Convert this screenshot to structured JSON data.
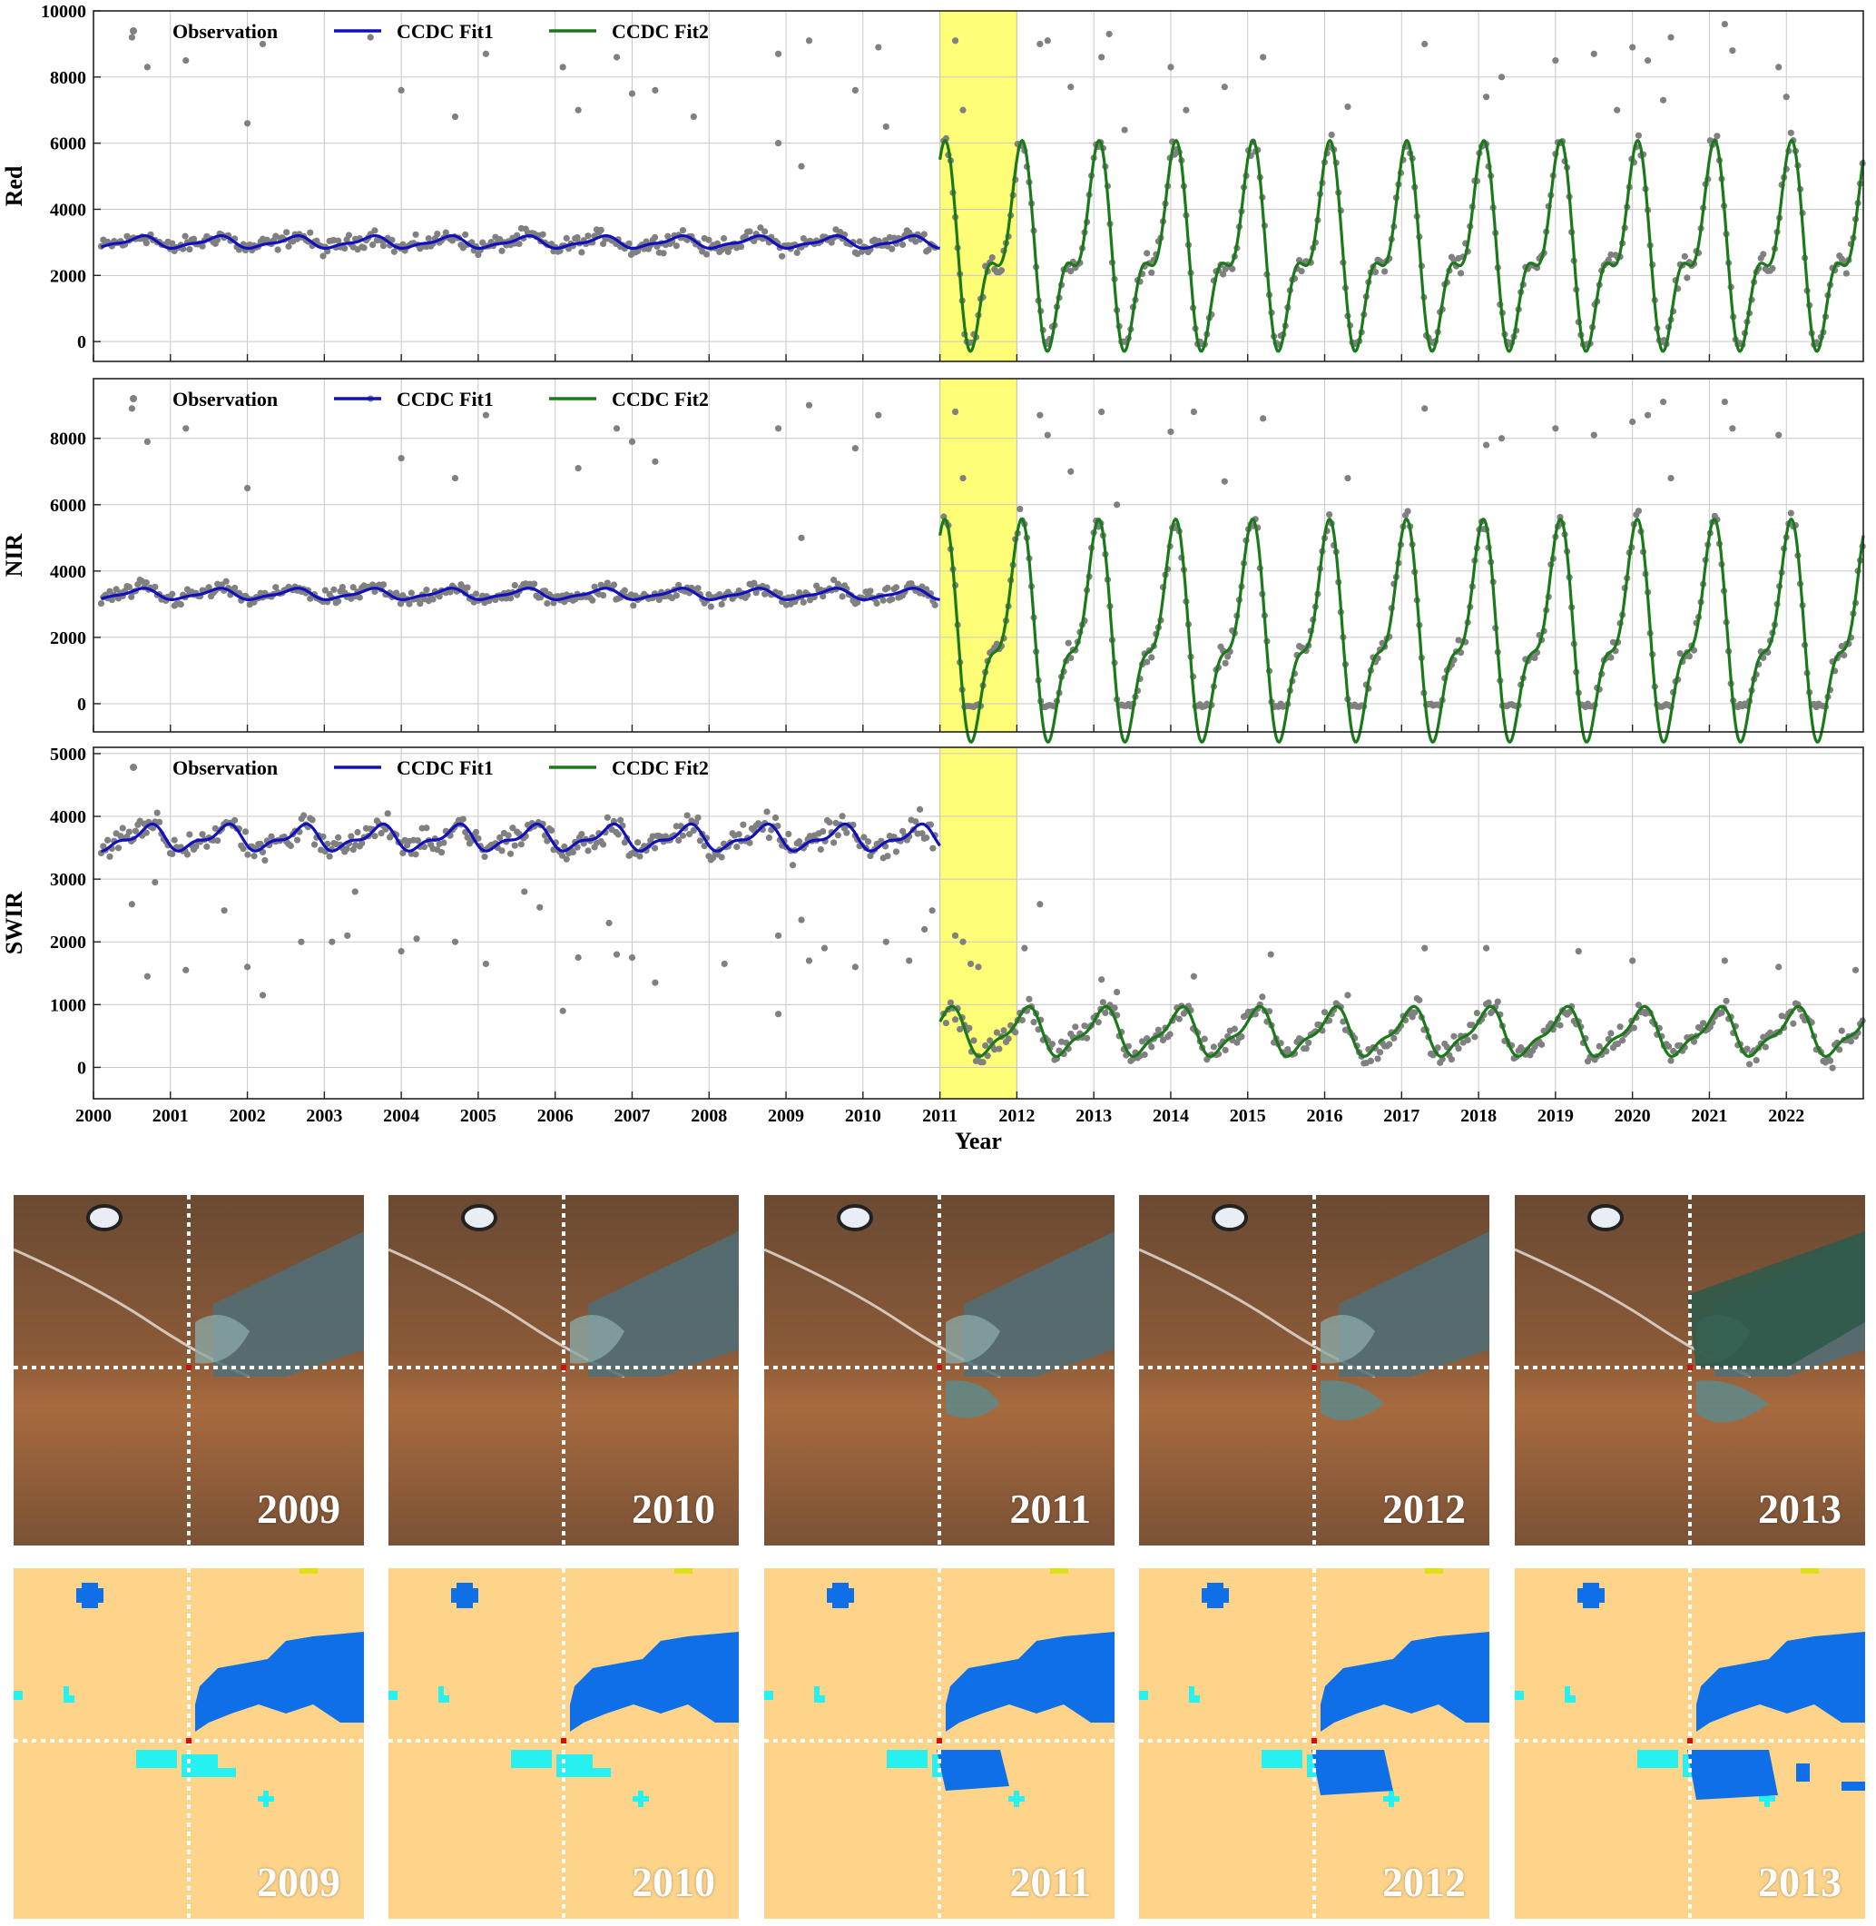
{
  "chart_data": {
    "type": "scatter",
    "xlabel": "Year",
    "xlim": [
      2000,
      2023
    ],
    "xticks": [
      "2000",
      "2001",
      "2002",
      "2003",
      "2004",
      "2005",
      "2006",
      "2007",
      "2008",
      "2009",
      "2010",
      "2011",
      "2012",
      "2013",
      "2014",
      "2015",
      "2016",
      "2017",
      "2018",
      "2019",
      "2020",
      "2021",
      "2022"
    ],
    "highlight_span": [
      2011,
      2012
    ],
    "highlight_color": "#ffff77",
    "legend": [
      "Observation",
      "CCDC Fit1",
      "CCDC Fit2"
    ],
    "legend_position": "top-left",
    "grid": true,
    "colors": {
      "observation": "#808080",
      "fit1": "#1010c0",
      "fit2": "#1a7a1a"
    },
    "panels": [
      {
        "ylabel": "Red",
        "ylim": [
          -600,
          10000
        ],
        "yticks": [
          0,
          2000,
          4000,
          6000,
          8000,
          10000
        ],
        "fit1": {
          "x_range": [
            2000.1,
            2011.0
          ],
          "mean": 3000,
          "amp1": 160,
          "phase1": 0.6,
          "amp2": 60,
          "phase2": 0.2
        },
        "fit2": {
          "x_range": [
            2011.0,
            2023.0
          ],
          "mean": 2700,
          "amp1": 2400,
          "phase1": 0.0,
          "amp2": 1300,
          "phase2": 0.1
        },
        "obs_seg1": {
          "base": 3000,
          "spread": 350,
          "outliers": [
            [
              2000.5,
              9200
            ],
            [
              2000.7,
              8300
            ],
            [
              2001.2,
              8500
            ],
            [
              2002.0,
              6600
            ],
            [
              2002.2,
              9000
            ],
            [
              2003.6,
              9200
            ],
            [
              2004.0,
              7600
            ],
            [
              2004.7,
              6800
            ],
            [
              2005.1,
              8700
            ],
            [
              2006.1,
              8300
            ],
            [
              2006.3,
              7000
            ],
            [
              2006.8,
              8600
            ],
            [
              2007.0,
              7500
            ],
            [
              2007.3,
              7600
            ],
            [
              2007.8,
              6800
            ],
            [
              2008.9,
              8700
            ],
            [
              2008.9,
              6000
            ],
            [
              2009.3,
              9100
            ],
            [
              2009.2,
              5300
            ],
            [
              2009.9,
              7600
            ],
            [
              2010.2,
              8900
            ],
            [
              2010.3,
              6500
            ]
          ]
        },
        "obs_seg2": {
          "noise": 500,
          "outliers": [
            [
              2011.2,
              9100
            ],
            [
              2011.3,
              7000
            ],
            [
              2012.3,
              9000
            ],
            [
              2012.4,
              9100
            ],
            [
              2012.7,
              7700
            ],
            [
              2013.1,
              8600
            ],
            [
              2013.2,
              9300
            ],
            [
              2013.4,
              6400
            ],
            [
              2014.0,
              8300
            ],
            [
              2014.2,
              7000
            ],
            [
              2014.7,
              7700
            ],
            [
              2015.2,
              8600
            ],
            [
              2016.3,
              7100
            ],
            [
              2017.3,
              9000
            ],
            [
              2018.1,
              7400
            ],
            [
              2018.3,
              8000
            ],
            [
              2019.0,
              8500
            ],
            [
              2019.5,
              8700
            ],
            [
              2019.8,
              7000
            ],
            [
              2020.0,
              8900
            ],
            [
              2020.2,
              8500
            ],
            [
              2020.4,
              7300
            ],
            [
              2020.5,
              9200
            ],
            [
              2021.2,
              9600
            ],
            [
              2021.3,
              8800
            ],
            [
              2021.9,
              8300
            ],
            [
              2022.0,
              7400
            ]
          ]
        }
      },
      {
        "ylabel": "NIR",
        "ylim": [
          -850,
          9800
        ],
        "yticks": [
          0,
          2000,
          4000,
          6000,
          8000
        ],
        "fit1": {
          "x_range": [
            2000.1,
            2011.0
          ],
          "mean": 3300,
          "amp1": 150,
          "phase1": 0.6,
          "amp2": 50,
          "phase2": 0.2
        },
        "fit2": {
          "x_range": [
            2011.0,
            2023.0
          ],
          "mean": 2000,
          "amp1": 2700,
          "phase1": 0.0,
          "amp2": 1200,
          "phase2": 0.1
        },
        "obs_seg1": {
          "base": 3300,
          "spread": 350,
          "outliers": [
            [
              2000.5,
              8900
            ],
            [
              2000.7,
              7900
            ],
            [
              2001.2,
              8300
            ],
            [
              2002.0,
              6500
            ],
            [
              2003.6,
              9200
            ],
            [
              2004.0,
              7400
            ],
            [
              2004.7,
              6800
            ],
            [
              2005.1,
              8700
            ],
            [
              2006.3,
              7100
            ],
            [
              2006.8,
              8300
            ],
            [
              2007.0,
              7900
            ],
            [
              2007.3,
              7300
            ],
            [
              2009.2,
              5000
            ],
            [
              2008.9,
              8300
            ],
            [
              2009.3,
              9000
            ],
            [
              2009.9,
              7700
            ],
            [
              2010.2,
              8700
            ]
          ]
        },
        "obs_seg2": {
          "noise": 450,
          "outliers": [
            [
              2011.2,
              8800
            ],
            [
              2011.3,
              6800
            ],
            [
              2012.3,
              8700
            ],
            [
              2012.4,
              8100
            ],
            [
              2012.7,
              7000
            ],
            [
              2013.1,
              8800
            ],
            [
              2013.3,
              6000
            ],
            [
              2014.0,
              8200
            ],
            [
              2014.3,
              8800
            ],
            [
              2014.7,
              6700
            ],
            [
              2015.2,
              8600
            ],
            [
              2016.3,
              6800
            ],
            [
              2017.3,
              8900
            ],
            [
              2018.1,
              7800
            ],
            [
              2018.3,
              8000
            ],
            [
              2019.0,
              8300
            ],
            [
              2019.5,
              8100
            ],
            [
              2020.0,
              8500
            ],
            [
              2020.2,
              8700
            ],
            [
              2020.4,
              9100
            ],
            [
              2020.5,
              6800
            ],
            [
              2021.2,
              9100
            ],
            [
              2021.3,
              8300
            ],
            [
              2021.9,
              8100
            ]
          ]
        }
      },
      {
        "ylabel": "SWIR",
        "ylim": [
          -500,
          5100
        ],
        "yticks": [
          0,
          1000,
          2000,
          3000,
          4000,
          5000
        ],
        "fit1": {
          "x_range": [
            2000.1,
            2011.0
          ],
          "mean": 3650,
          "amp1": 170,
          "phase1": 0.7,
          "amp2": 80,
          "phase2": 0.3
        },
        "fit2": {
          "x_range": [
            2011.0,
            2023.0
          ],
          "mean": 550,
          "amp1": 340,
          "phase1": 0.1,
          "amp2": 120,
          "phase2": 0.2
        },
        "obs_seg1": {
          "base": 3700,
          "spread": 300,
          "outliers": [
            [
              2000.5,
              2600
            ],
            [
              2000.7,
              1450
            ],
            [
              2000.8,
              2950
            ],
            [
              2001.2,
              1550
            ],
            [
              2001.7,
              2500
            ],
            [
              2002.2,
              1150
            ],
            [
              2002.0,
              1600
            ],
            [
              2002.7,
              2000
            ],
            [
              2003.1,
              2000
            ],
            [
              2003.3,
              2100
            ],
            [
              2003.4,
              2800
            ],
            [
              2004.0,
              1850
            ],
            [
              2004.2,
              2050
            ],
            [
              2004.7,
              2000
            ],
            [
              2005.1,
              1650
            ],
            [
              2005.6,
              2800
            ],
            [
              2005.8,
              2550
            ],
            [
              2006.1,
              900
            ],
            [
              2006.3,
              1750
            ],
            [
              2006.7,
              2300
            ],
            [
              2006.8,
              1800
            ],
            [
              2007.0,
              1750
            ],
            [
              2007.3,
              1350
            ],
            [
              2008.2,
              1650
            ],
            [
              2008.9,
              850
            ],
            [
              2008.9,
              2100
            ],
            [
              2009.2,
              2350
            ],
            [
              2009.3,
              1700
            ],
            [
              2009.5,
              1900
            ],
            [
              2009.9,
              1600
            ],
            [
              2010.3,
              2000
            ],
            [
              2010.6,
              1700
            ],
            [
              2010.8,
              2200
            ],
            [
              2010.9,
              2500
            ]
          ]
        },
        "obs_seg2": {
          "noise": 280,
          "outliers": [
            [
              2011.2,
              2100
            ],
            [
              2011.3,
              2000
            ],
            [
              2011.4,
              1650
            ],
            [
              2011.5,
              1600
            ],
            [
              2012.3,
              2600
            ],
            [
              2012.1,
              1900
            ],
            [
              2013.1,
              1400
            ],
            [
              2013.3,
              1200
            ],
            [
              2014.3,
              1450
            ],
            [
              2015.3,
              1800
            ],
            [
              2016.3,
              1150
            ],
            [
              2017.3,
              1900
            ],
            [
              2018.1,
              1900
            ],
            [
              2019.3,
              1850
            ],
            [
              2020.0,
              1700
            ],
            [
              2021.2,
              1700
            ],
            [
              2021.9,
              1600
            ],
            [
              2022.9,
              1550
            ]
          ]
        }
      }
    ]
  },
  "tiles": {
    "rgb": [
      {
        "year": "2009"
      },
      {
        "year": "2010"
      },
      {
        "year": "2011"
      },
      {
        "year": "2012"
      },
      {
        "year": "2013"
      }
    ],
    "classified": [
      {
        "year": "2009"
      },
      {
        "year": "2010"
      },
      {
        "year": "2011"
      },
      {
        "year": "2012"
      },
      {
        "year": "2013"
      }
    ],
    "colors": {
      "land": "#fdd48a",
      "water": "#0f6fe6",
      "shallow": "#27f0f0",
      "marker": "#e0e010",
      "crosshair": "#ffffff"
    }
  }
}
